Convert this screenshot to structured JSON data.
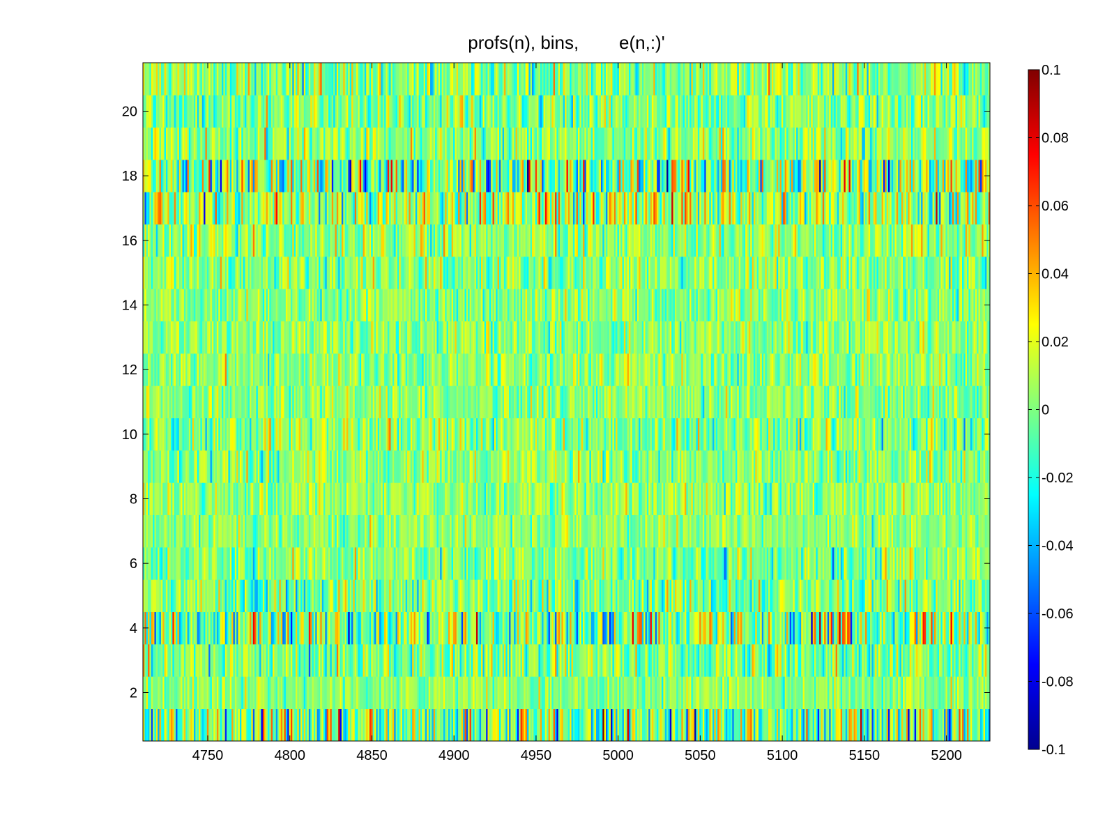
{
  "chart_data": {
    "type": "heatmap",
    "title": "profs(n), bins,        e(n,:)'",
    "xlabel": "",
    "ylabel": "",
    "xlim": [
      4711,
      5226
    ],
    "ylim": [
      1,
      21
    ],
    "x_ticks": [
      4750,
      4800,
      4850,
      4900,
      4950,
      5000,
      5050,
      5100,
      5150,
      5200
    ],
    "x_tick_labels": [
      "4750",
      "4800",
      "4850",
      "4900",
      "4950",
      "5000",
      "5050",
      "5100",
      "5150",
      "5200"
    ],
    "y_ticks": [
      2,
      4,
      6,
      8,
      10,
      12,
      14,
      16,
      18,
      20
    ],
    "y_tick_labels": [
      "2",
      "4",
      "6",
      "8",
      "10",
      "12",
      "14",
      "16",
      "18",
      "20"
    ],
    "rows": [
      1,
      2,
      3,
      4,
      5,
      6,
      7,
      8,
      9,
      10,
      11,
      12,
      13,
      14,
      15,
      16,
      17,
      18,
      19,
      20,
      21
    ],
    "columns_per_row": 516,
    "clim": [
      -0.1,
      0.1
    ],
    "colormap": "jet",
    "colorbar_ticks": [
      0.1,
      0.08,
      0.06,
      0.04,
      0.02,
      0,
      -0.02,
      -0.04,
      -0.06,
      -0.08,
      -0.1
    ],
    "colorbar_tick_labels": [
      "0.1",
      "0.08",
      "0.06",
      "0.04",
      "0.02",
      "0",
      "-0.02",
      "-0.04",
      "-0.06",
      "-0.08",
      "-0.1"
    ],
    "row_noise_sigma": [
      0.032,
      0.012,
      0.018,
      0.03,
      0.018,
      0.014,
      0.012,
      0.014,
      0.014,
      0.016,
      0.013,
      0.013,
      0.013,
      0.013,
      0.015,
      0.016,
      0.025,
      0.032,
      0.016,
      0.016,
      0.018
    ],
    "row_mean": [
      0.0,
      0.003,
      0.0,
      0.0,
      0.0,
      0.0,
      0.003,
      0.003,
      0.003,
      0.002,
      0.002,
      0.002,
      0.003,
      0.003,
      0.003,
      0.004,
      0.008,
      0.0,
      0.003,
      0.0,
      0.002
    ],
    "grid": false,
    "legend": "none"
  }
}
